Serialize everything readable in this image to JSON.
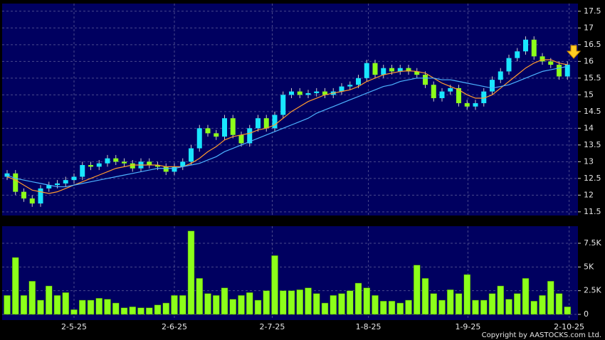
{
  "chart_data": [
    {
      "type": "candlestick",
      "open": [
        12.55,
        12.65,
        12.1,
        11.9,
        11.75,
        12.2,
        12.3,
        12.35,
        12.45,
        12.55,
        12.9,
        12.85,
        12.95,
        13.1,
        13.0,
        12.95,
        12.8,
        13.0,
        12.9,
        12.85,
        12.7,
        12.85,
        13.0,
        13.4,
        14.0,
        13.85,
        13.75,
        14.3,
        13.8,
        13.55,
        14.0,
        14.3,
        14.0,
        14.4,
        15.0,
        15.1,
        15.0,
        15.05,
        15.1,
        15.0,
        15.1,
        15.25,
        15.3,
        15.5,
        15.95,
        15.6,
        15.8,
        15.7,
        15.8,
        15.7,
        15.6,
        15.3,
        14.9,
        15.1,
        15.2,
        14.75,
        14.65,
        14.75,
        15.1,
        15.45,
        15.7,
        16.1,
        16.3,
        16.65,
        16.15,
        16.0,
        15.9,
        15.55
      ],
      "high": [
        12.75,
        12.75,
        12.2,
        12.0,
        12.3,
        12.4,
        12.45,
        12.55,
        12.65,
        13.0,
        13.0,
        13.05,
        13.2,
        13.2,
        13.1,
        13.05,
        13.1,
        13.1,
        13.0,
        12.95,
        12.95,
        13.1,
        13.5,
        14.1,
        14.1,
        13.95,
        14.4,
        14.4,
        13.9,
        14.1,
        14.4,
        14.4,
        14.5,
        15.1,
        15.2,
        15.2,
        15.15,
        15.2,
        15.2,
        15.2,
        15.35,
        15.4,
        15.6,
        16.05,
        16.05,
        15.9,
        15.9,
        15.9,
        15.9,
        15.8,
        15.7,
        15.4,
        15.2,
        15.3,
        15.3,
        14.85,
        14.85,
        15.2,
        15.55,
        15.8,
        16.2,
        16.4,
        16.75,
        16.75,
        16.25,
        16.1,
        16.0,
        16.0
      ],
      "low": [
        12.45,
        12.0,
        11.8,
        11.65,
        11.65,
        12.1,
        12.2,
        12.25,
        12.35,
        12.45,
        12.75,
        12.75,
        12.85,
        12.9,
        12.85,
        12.7,
        12.7,
        12.8,
        12.75,
        12.6,
        12.6,
        12.75,
        12.9,
        13.3,
        13.75,
        13.65,
        13.65,
        13.7,
        13.45,
        13.45,
        13.9,
        13.9,
        13.9,
        14.3,
        14.9,
        14.9,
        14.9,
        14.95,
        14.9,
        14.9,
        15.0,
        15.15,
        15.2,
        15.4,
        15.5,
        15.5,
        15.6,
        15.6,
        15.6,
        15.5,
        15.2,
        14.8,
        14.8,
        15.0,
        14.65,
        14.55,
        14.55,
        14.65,
        15.0,
        15.35,
        15.6,
        16.0,
        16.2,
        16.05,
        15.9,
        15.8,
        15.45,
        15.45
      ],
      "close": [
        12.65,
        12.1,
        11.9,
        11.75,
        12.2,
        12.3,
        12.35,
        12.45,
        12.55,
        12.9,
        12.85,
        12.95,
        13.1,
        13.0,
        12.95,
        12.8,
        13.0,
        12.9,
        12.85,
        12.7,
        12.85,
        13.0,
        13.4,
        14.0,
        13.85,
        13.75,
        14.3,
        13.8,
        13.55,
        14.0,
        14.3,
        14.0,
        14.4,
        15.0,
        15.1,
        15.0,
        15.05,
        15.1,
        15.0,
        15.1,
        15.25,
        15.3,
        15.5,
        15.95,
        15.6,
        15.8,
        15.7,
        15.8,
        15.7,
        15.6,
        15.3,
        14.9,
        15.1,
        15.2,
        14.75,
        14.65,
        14.75,
        15.1,
        15.45,
        15.7,
        16.1,
        16.3,
        16.65,
        16.15,
        16.0,
        15.9,
        15.55,
        15.9
      ],
      "up_color": "#19e6ff",
      "down_color": "#8cff1a",
      "series": [
        {
          "color": "#ff9a2e",
          "values": [
            12.55,
            12.45,
            12.3,
            12.15,
            12.1,
            12.05,
            12.1,
            12.2,
            12.3,
            12.4,
            12.5,
            12.6,
            12.7,
            12.8,
            12.85,
            12.9,
            12.9,
            12.9,
            12.9,
            12.85,
            12.85,
            12.85,
            12.95,
            13.1,
            13.3,
            13.45,
            13.65,
            13.75,
            13.8,
            13.85,
            13.95,
            14.0,
            14.1,
            14.3,
            14.5,
            14.65,
            14.8,
            14.9,
            15.0,
            15.05,
            15.1,
            15.15,
            15.25,
            15.4,
            15.5,
            15.6,
            15.65,
            15.7,
            15.72,
            15.7,
            15.65,
            15.5,
            15.35,
            15.25,
            15.15,
            15.0,
            14.9,
            14.9,
            15.0,
            15.2,
            15.4,
            15.6,
            15.8,
            15.95,
            16.05,
            16.05,
            15.95,
            15.9
          ]
        },
        {
          "color": "#4db3ff",
          "values": [
            12.6,
            12.5,
            12.45,
            12.4,
            12.35,
            12.3,
            12.25,
            12.25,
            12.3,
            12.35,
            12.4,
            12.45,
            12.5,
            12.55,
            12.6,
            12.65,
            12.7,
            12.75,
            12.8,
            12.8,
            12.8,
            12.85,
            12.9,
            12.95,
            13.05,
            13.15,
            13.3,
            13.4,
            13.5,
            13.6,
            13.7,
            13.8,
            13.9,
            14.0,
            14.1,
            14.2,
            14.3,
            14.45,
            14.55,
            14.65,
            14.75,
            14.85,
            14.95,
            15.05,
            15.15,
            15.25,
            15.3,
            15.4,
            15.45,
            15.5,
            15.5,
            15.5,
            15.45,
            15.45,
            15.4,
            15.35,
            15.3,
            15.25,
            15.2,
            15.25,
            15.3,
            15.4,
            15.5,
            15.6,
            15.7,
            15.75,
            15.8,
            15.85
          ]
        }
      ],
      "ylim": [
        11.39,
        17.73
      ],
      "yticks": [
        11.5,
        12,
        12.5,
        13,
        13.5,
        14,
        14.5,
        15,
        15.5,
        16,
        16.5,
        17,
        17.5
      ],
      "grid": true
    },
    {
      "type": "bar",
      "values": [
        2000,
        6000,
        2000,
        3500,
        1500,
        3000,
        2000,
        2300,
        500,
        1500,
        1500,
        1700,
        1600,
        1200,
        700,
        800,
        700,
        700,
        1000,
        1200,
        2000,
        2000,
        8800,
        3800,
        2200,
        2000,
        2800,
        1600,
        2000,
        2300,
        1500,
        2500,
        6200,
        2500,
        2500,
        2600,
        2800,
        2200,
        1200,
        2000,
        2200,
        2500,
        3300,
        2800,
        2000,
        1400,
        1400,
        1200,
        1500,
        5200,
        3800,
        2200,
        1500,
        2600,
        2200,
        4200,
        1500,
        1500,
        2200,
        3000,
        1600,
        2200,
        3800,
        1400,
        2000,
        3500,
        2200,
        800
      ],
      "color": "#8cff1a",
      "ylim": [
        -600,
        9300
      ],
      "yticks": [
        0,
        {
          "value": 2500,
          "label": "2.5K"
        },
        {
          "value": 5000,
          "label": "5K"
        },
        {
          "value": 7500,
          "label": "7.5K"
        }
      ],
      "xticks": [
        {
          "value": 8,
          "label": "2-5-25"
        },
        {
          "value": 20,
          "label": "2-6-25"
        },
        {
          "value": 31.7,
          "label": "2-7-25"
        },
        {
          "value": 43.2,
          "label": "1-8-25"
        },
        {
          "value": 55.1,
          "label": "1-9-25"
        },
        {
          "value": 67.2,
          "label": "2-10-25"
        }
      ],
      "grid": true
    }
  ],
  "footer": "Copyright by AASTOCKS.com Ltd."
}
